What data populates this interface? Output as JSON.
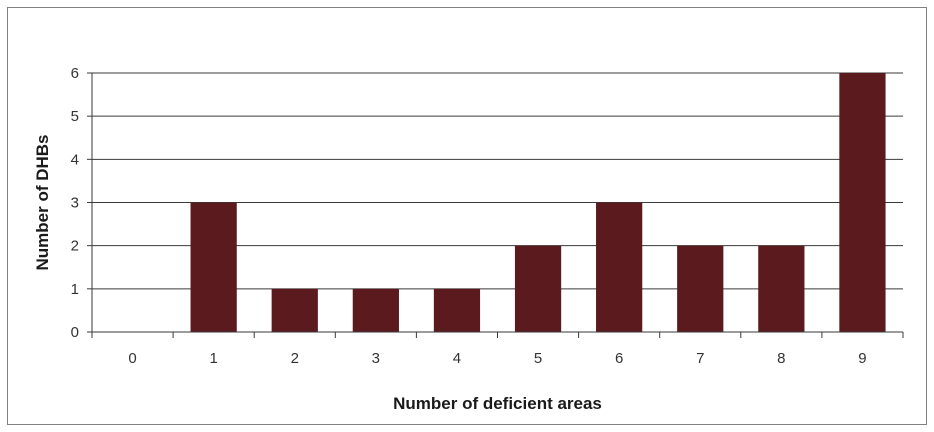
{
  "chart_data": {
    "type": "bar",
    "title": "",
    "xlabel": "Number of deficient areas",
    "ylabel": "Number of DHBs",
    "categories": [
      "0",
      "1",
      "2",
      "3",
      "4",
      "5",
      "6",
      "7",
      "8",
      "9"
    ],
    "values": [
      0,
      3,
      1,
      1,
      1,
      2,
      3,
      2,
      2,
      6
    ],
    "ylim": [
      0,
      6
    ],
    "yticks": [
      "0",
      "1",
      "2",
      "3",
      "4",
      "5",
      "6"
    ],
    "grid": true,
    "legend": "none",
    "bar_color": "#5a1a1e",
    "grid_color": "#3a3a3a"
  }
}
